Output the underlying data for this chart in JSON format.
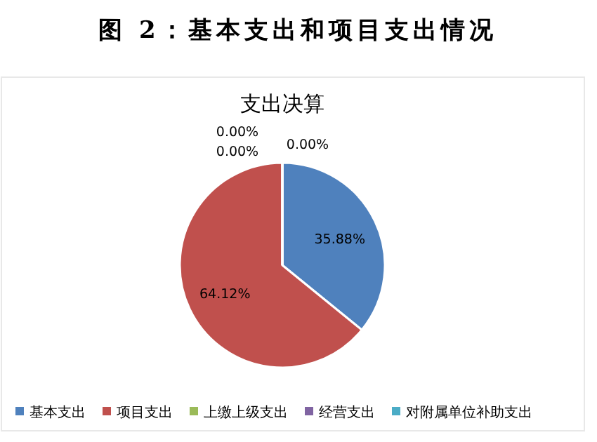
{
  "chart_data": {
    "type": "pie",
    "title": "图 2：基本支出和项目支出情况",
    "subtitle": "支出决算",
    "categories": [
      "基本支出",
      "项目支出",
      "上缴上级支出",
      "经营支出",
      "对附属单位补助支出"
    ],
    "values": [
      35.88,
      64.12,
      0,
      0,
      0
    ],
    "colors": [
      "#4f81bd",
      "#c0504d",
      "#9bbb59",
      "#8064a2",
      "#4bacc6"
    ],
    "value_labels": [
      "35.88%",
      "64.12%",
      "0.00%",
      "0.00%",
      "0.00%"
    ],
    "legend": "bottom"
  }
}
